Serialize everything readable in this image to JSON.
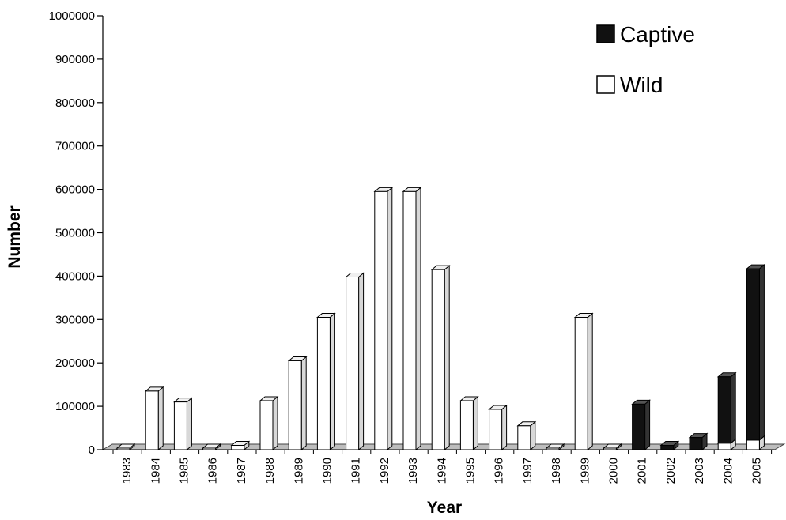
{
  "chart_data": {
    "type": "bar",
    "stacked": true,
    "style": "3d",
    "xlabel": "Year",
    "ylabel": "Number",
    "ylim": [
      0,
      1000000
    ],
    "y_ticks": [
      "0",
      "100000",
      "200000",
      "300000",
      "400000",
      "500000",
      "600000",
      "700000",
      "800000",
      "900000",
      "1000000"
    ],
    "categories": [
      "1983",
      "1984",
      "1985",
      "1986",
      "1987",
      "1988",
      "1989",
      "1990",
      "1991",
      "1992",
      "1993",
      "1994",
      "1995",
      "1996",
      "1997",
      "1998",
      "1999",
      "2000",
      "2001",
      "2002",
      "2003",
      "2004",
      "2005"
    ],
    "series": [
      {
        "name": "Wild",
        "color": "#ffffff",
        "values": [
          3000,
          135000,
          110000,
          2000,
          10000,
          113000,
          205000,
          305000,
          398000,
          595000,
          595000,
          415000,
          113000,
          93000,
          55000,
          2000,
          305000,
          2000,
          0,
          0,
          0,
          15000,
          22000
        ]
      },
      {
        "name": "Captive",
        "color": "#111111",
        "values": [
          0,
          0,
          0,
          0,
          0,
          0,
          0,
          0,
          0,
          0,
          0,
          0,
          0,
          0,
          0,
          0,
          0,
          0,
          105000,
          10000,
          28000,
          153000,
          395000
        ]
      }
    ],
    "legend_position": "top-right",
    "grid": false
  }
}
